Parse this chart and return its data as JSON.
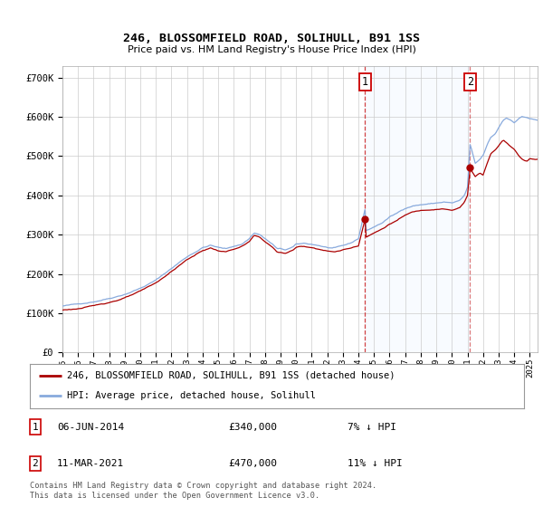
{
  "title": "246, BLOSSOMFIELD ROAD, SOLIHULL, B91 1SS",
  "subtitle": "Price paid vs. HM Land Registry's House Price Index (HPI)",
  "ylabel_ticks": [
    "£0",
    "£100K",
    "£200K",
    "£300K",
    "£400K",
    "£500K",
    "£600K",
    "£700K"
  ],
  "ytick_values": [
    0,
    100000,
    200000,
    300000,
    400000,
    500000,
    600000,
    700000
  ],
  "ylim": [
    0,
    730000
  ],
  "legend_line1": "246, BLOSSOMFIELD ROAD, SOLIHULL, B91 1SS (detached house)",
  "legend_line2": "HPI: Average price, detached house, Solihull",
  "sale1_date": "06-JUN-2014",
  "sale1_price": "£340,000",
  "sale1_note": "7% ↓ HPI",
  "sale2_date": "11-MAR-2021",
  "sale2_price": "£470,000",
  "sale2_note": "11% ↓ HPI",
  "footer": "Contains HM Land Registry data © Crown copyright and database right 2024.\nThis data is licensed under the Open Government Licence v3.0.",
  "line_color_red": "#aa0000",
  "line_color_blue": "#88aadd",
  "shade_color": "#ddeeff",
  "vline1_color": "#cc2222",
  "vline2_color": "#aaaaaa",
  "grid_color": "#cccccc",
  "bg_color": "#ffffff",
  "annotation_box_color": "#cc0000",
  "sale1_x": 2014.42,
  "sale2_x": 2021.17,
  "sale1_y": 340000,
  "sale2_y": 470000,
  "x_start": 1995.0,
  "x_end": 2025.5,
  "xtick_years": [
    1995,
    1996,
    1997,
    1998,
    1999,
    2000,
    2001,
    2002,
    2003,
    2004,
    2005,
    2006,
    2007,
    2008,
    2009,
    2010,
    2011,
    2012,
    2013,
    2014,
    2015,
    2016,
    2017,
    2018,
    2019,
    2020,
    2021,
    2022,
    2023,
    2024,
    2025
  ]
}
